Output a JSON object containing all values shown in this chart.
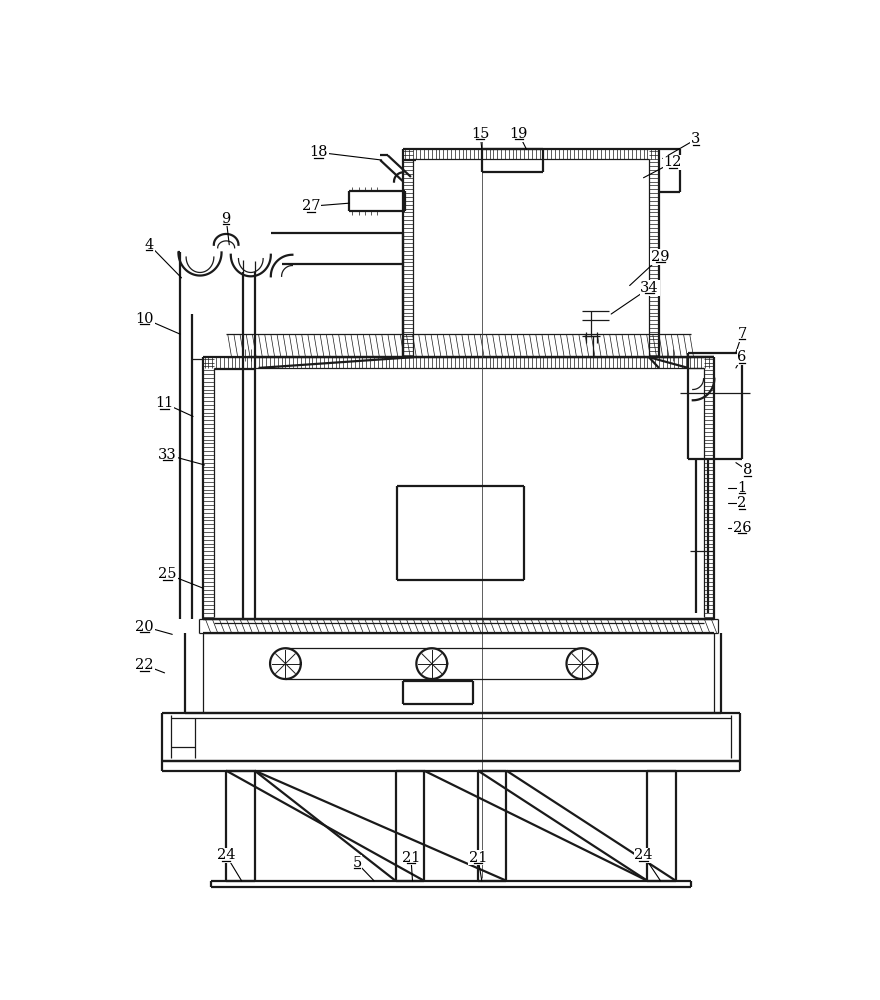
{
  "bg": "#ffffff",
  "lc": "#1a1a1a",
  "lw": 1.6,
  "tlw": 0.9,
  "hlw": 0.5,
  "figw": 8.8,
  "figh": 10.0,
  "dpi": 100,
  "labels": [
    [
      48,
      162,
      "4"
    ],
    [
      148,
      128,
      "9"
    ],
    [
      42,
      258,
      "10"
    ],
    [
      68,
      368,
      "11"
    ],
    [
      72,
      435,
      "33"
    ],
    [
      72,
      590,
      "25"
    ],
    [
      42,
      658,
      "20"
    ],
    [
      42,
      708,
      "22"
    ],
    [
      148,
      955,
      "24"
    ],
    [
      318,
      965,
      "5"
    ],
    [
      388,
      958,
      "21"
    ],
    [
      475,
      958,
      "21"
    ],
    [
      690,
      955,
      "24"
    ],
    [
      258,
      112,
      "27"
    ],
    [
      268,
      42,
      "18"
    ],
    [
      478,
      18,
      "15"
    ],
    [
      528,
      18,
      "19"
    ],
    [
      758,
      25,
      "3"
    ],
    [
      728,
      55,
      "12"
    ],
    [
      712,
      178,
      "29"
    ],
    [
      698,
      218,
      "34"
    ],
    [
      818,
      278,
      "7"
    ],
    [
      818,
      308,
      "6"
    ],
    [
      825,
      455,
      "8"
    ],
    [
      818,
      478,
      "1"
    ],
    [
      818,
      498,
      "2"
    ],
    [
      818,
      530,
      "26"
    ]
  ]
}
